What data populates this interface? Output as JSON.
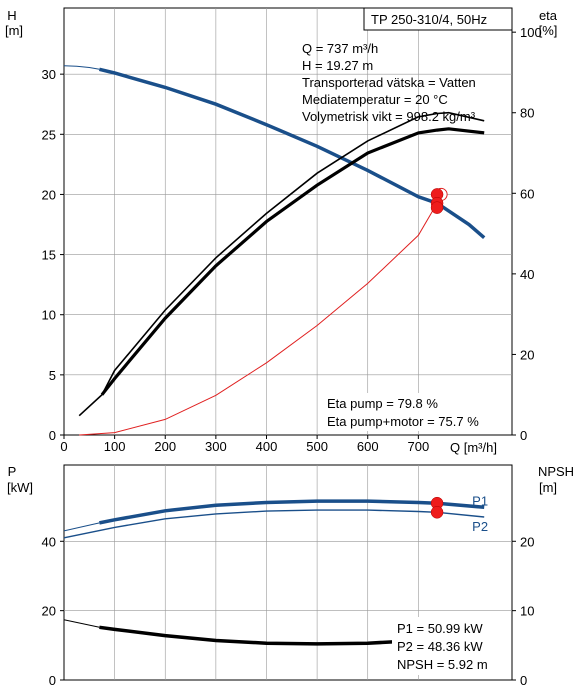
{
  "chart_data": [
    {
      "type": "line",
      "title": "TP 250-310/4, 50Hz",
      "xlabel": "Q [m³/h]",
      "ylabel": "H",
      "ylabel_unit": "[m]",
      "y2label": "eta",
      "y2label_unit": "[%]",
      "xlim": [
        0,
        885
      ],
      "xticks": [
        0,
        100,
        200,
        300,
        400,
        500,
        600,
        700
      ],
      "ylim": [
        0,
        35.5
      ],
      "yticks": [
        0,
        5,
        10,
        15,
        20,
        25,
        30
      ],
      "y2lim": [
        0,
        106
      ],
      "y2ticks": [
        0,
        20,
        40,
        60,
        80,
        100
      ],
      "grid": true,
      "info": [
        "Q = 737 m³/h",
        "H = 19.27 m",
        "Transporterad vätska = Vatten",
        "Mediatemperatur = 20 °C",
        "Volymetrisk vikt = 998.2 kg/m³"
      ],
      "eta_info": [
        "Eta pump = 79.8 %",
        "Eta pump+motor = 75.7 %"
      ],
      "series": [
        {
          "role": "head",
          "color": "#1a4f8a",
          "thin": [
            [
              0,
              30.7
            ],
            [
              25,
              30.65
            ],
            [
              50,
              30.55
            ],
            [
              70,
              30.4
            ]
          ],
          "thick": [
            [
              70,
              30.4
            ],
            [
              100,
              30.1
            ],
            [
              200,
              28.9
            ],
            [
              300,
              27.5
            ],
            [
              400,
              25.8
            ],
            [
              500,
              24.0
            ],
            [
              600,
              22.0
            ],
            [
              700,
              19.8
            ],
            [
              737,
              19.27
            ],
            [
              800,
              17.5
            ],
            [
              830,
              16.4
            ]
          ]
        },
        {
          "role": "eta_pump",
          "axis": "y2",
          "color": "#000000",
          "values": [
            [
              30,
              4.8
            ],
            [
              75,
              10
            ],
            [
              100,
              16
            ],
            [
              200,
              31
            ],
            [
              300,
              44
            ],
            [
              400,
              55
            ],
            [
              500,
              65
            ],
            [
              600,
              73
            ],
            [
              700,
              79
            ],
            [
              737,
              79.8
            ],
            [
              760,
              80
            ],
            [
              830,
              78
            ]
          ]
        },
        {
          "role": "eta_pump_motor",
          "axis": "y2",
          "color": "#000000",
          "values": [
            [
              75,
              10
            ],
            [
              100,
              14
            ],
            [
              200,
              29
            ],
            [
              300,
              42
            ],
            [
              400,
              53
            ],
            [
              500,
              62
            ],
            [
              600,
              70
            ],
            [
              700,
              75
            ],
            [
              737,
              75.7
            ],
            [
              760,
              76
            ],
            [
              830,
              75
            ]
          ]
        },
        {
          "role": "system_curve",
          "color": "#e02020",
          "values": [
            [
              30,
              0
            ],
            [
              100,
              0.2
            ],
            [
              200,
              1.3
            ],
            [
              300,
              3.3
            ],
            [
              400,
              6.0
            ],
            [
              500,
              9.1
            ],
            [
              600,
              12.6
            ],
            [
              700,
              16.6
            ],
            [
              737,
              19.27
            ]
          ]
        }
      ],
      "markers": [
        {
          "x": 737,
          "axis": "y",
          "y": 20.0
        },
        {
          "x": 737,
          "axis": "y",
          "y": 19.27
        },
        {
          "x": 737,
          "axis": "y",
          "y": 18.9
        }
      ]
    },
    {
      "type": "line",
      "ylabel": "P",
      "ylabel_unit": "[kW]",
      "y2label": "NPSH",
      "y2label_unit": "[m]",
      "xlim": [
        0,
        885
      ],
      "ylim": [
        0,
        62
      ],
      "yticks": [
        0,
        20,
        40
      ],
      "y2lim": [
        0,
        31
      ],
      "y2ticks": [
        0,
        10,
        20
      ],
      "grid": true,
      "info": [
        "P1 = 50.99 kW",
        "P2 = 48.36 kW",
        "NPSH = 5.92 m"
      ],
      "series": [
        {
          "name": "P1",
          "color": "#1a4f8a",
          "thin": [
            [
              0,
              43
            ],
            [
              70,
              45.3
            ]
          ],
          "thick": [
            [
              70,
              45.3
            ],
            [
              100,
              46.2
            ],
            [
              200,
              48.8
            ],
            [
              300,
              50.4
            ],
            [
              400,
              51.2
            ],
            [
              500,
              51.6
            ],
            [
              600,
              51.6
            ],
            [
              700,
              51.2
            ],
            [
              737,
              50.99
            ],
            [
              830,
              49.8
            ]
          ]
        },
        {
          "name": "P2",
          "color": "#1a4f8a",
          "values": [
            [
              0,
              41
            ],
            [
              100,
              44
            ],
            [
              200,
              46.5
            ],
            [
              300,
              47.9
            ],
            [
              400,
              48.7
            ],
            [
              500,
              49
            ],
            [
              600,
              49
            ],
            [
              700,
              48.6
            ],
            [
              737,
              48.36
            ],
            [
              830,
              47
            ]
          ]
        },
        {
          "role": "npsh",
          "axis": "y2",
          "color": "#000000",
          "thin": [
            [
              0,
              8.7
            ],
            [
              70,
              7.6
            ]
          ],
          "thick": [
            [
              70,
              7.6
            ],
            [
              100,
              7.3
            ],
            [
              200,
              6.4
            ],
            [
              300,
              5.7
            ],
            [
              400,
              5.3
            ],
            [
              500,
              5.2
            ],
            [
              600,
              5.3
            ],
            [
              700,
              5.7
            ],
            [
              737,
              5.92
            ]
          ]
        }
      ],
      "markers": [
        {
          "x": 737,
          "axis": "y",
          "y": 50.99
        },
        {
          "x": 737,
          "axis": "y",
          "y": 48.36
        }
      ]
    }
  ]
}
